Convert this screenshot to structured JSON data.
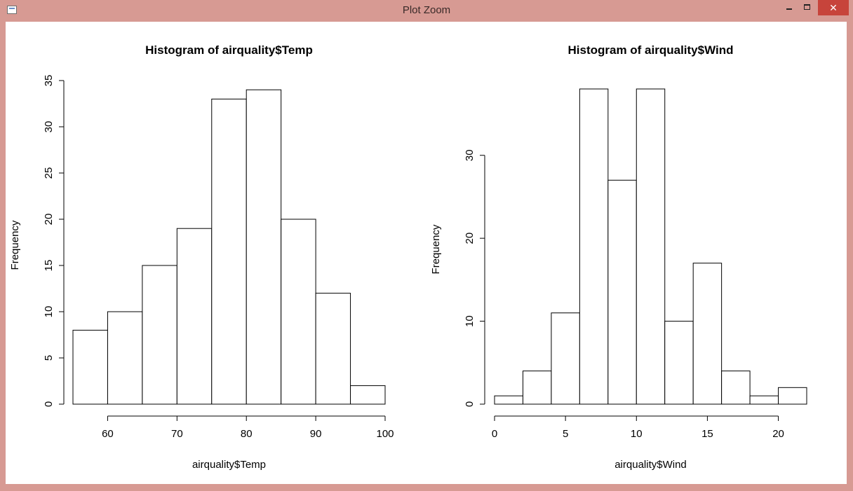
{
  "window": {
    "title": "Plot Zoom",
    "icons": {
      "app": "window-icon",
      "minimize": "minimize-icon",
      "maximize": "maximize-icon",
      "close": "close-icon"
    },
    "close_label": "✕",
    "colors": {
      "frame": "#d79a93",
      "close": "#c7443b",
      "plot_bg": "#ffffff"
    }
  },
  "chart_data": [
    {
      "type": "bar",
      "title": "Histogram of airquality$Temp",
      "xlabel": "airquality$Temp",
      "ylabel": "Frequency",
      "bin_edges": [
        55,
        60,
        65,
        70,
        75,
        80,
        85,
        90,
        95,
        100
      ],
      "values": [
        8,
        10,
        15,
        19,
        33,
        34,
        20,
        12,
        2
      ],
      "xlim": [
        55,
        100
      ],
      "ylim": [
        0,
        35
      ],
      "xticks": [
        60,
        70,
        80,
        90,
        100
      ],
      "yticks": [
        0,
        5,
        10,
        15,
        20,
        25,
        30,
        35
      ],
      "grid": false,
      "legend": "none"
    },
    {
      "type": "bar",
      "title": "Histogram of airquality$Wind",
      "xlabel": "airquality$Wind",
      "ylabel": "Frequency",
      "bin_edges": [
        0,
        2,
        4,
        6,
        8,
        10,
        12,
        14,
        16,
        18,
        20,
        22
      ],
      "values": [
        1,
        4,
        11,
        38,
        27,
        38,
        10,
        17,
        4,
        1,
        2
      ],
      "xlim": [
        0,
        22
      ],
      "ylim": [
        0,
        38
      ],
      "xticks": [
        0,
        5,
        10,
        15,
        20
      ],
      "yticks": [
        0,
        10,
        20,
        30
      ],
      "grid": false,
      "legend": "none"
    }
  ]
}
